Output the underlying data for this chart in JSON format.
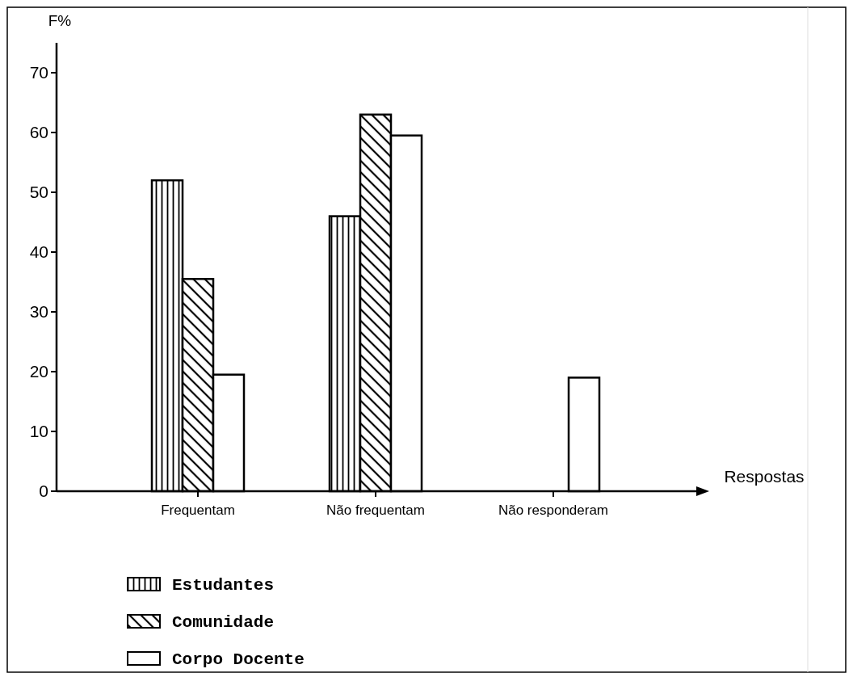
{
  "chart_data": {
    "type": "bar",
    "ylabel": "F%",
    "xlabel": "Respostas",
    "categories": [
      "Frequentam",
      "Não frequentam",
      "Não responderam"
    ],
    "series": [
      {
        "name": "Estudantes",
        "color": "#000000",
        "values": [
          52,
          46,
          null
        ]
      },
      {
        "name": "Comunidade",
        "color": "#000000",
        "values": [
          35.5,
          63,
          null
        ]
      },
      {
        "name": "Corpo Docente",
        "color": "#ffffff",
        "values": [
          19.5,
          59.5,
          19
        ]
      }
    ],
    "ylim": [
      0,
      75
    ],
    "yticks": [
      0,
      10,
      20,
      30,
      40,
      50,
      60,
      70
    ],
    "grid": false,
    "legend": "bottom left"
  }
}
